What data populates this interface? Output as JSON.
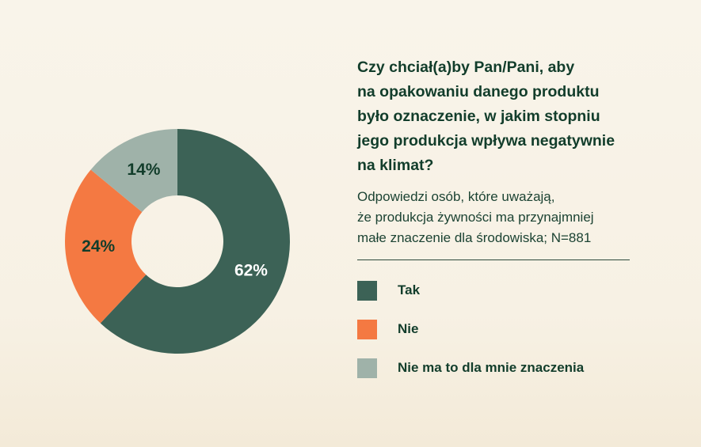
{
  "chart_data": {
    "type": "pie",
    "variant": "donut",
    "title_lines": [
      "Czy chciał(a)by Pan/Pani, aby",
      "na opakowaniu danego produktu",
      "było oznaczenie, w jakim stopniu",
      "jego produkcja wpływa negatywnie",
      "na klimat?"
    ],
    "subtitle_lines": [
      "Odpowiedzi osób, które uważają,",
      "że produkcja żywności ma przynajmniej",
      "małe znaczenie dla środowiska; N=881"
    ],
    "categories": [
      "Tak",
      "Nie",
      "Nie ma to dla mnie znaczenia"
    ],
    "values": [
      62,
      24,
      14
    ],
    "value_labels": [
      "62%",
      "24%",
      "14%"
    ],
    "unit": "%",
    "colors": [
      "#3c6256",
      "#f47942",
      "#9fb2a9"
    ],
    "label_colors": [
      "#ffffff",
      "#123d2b",
      "#123d2b"
    ],
    "legend_position": "right"
  }
}
